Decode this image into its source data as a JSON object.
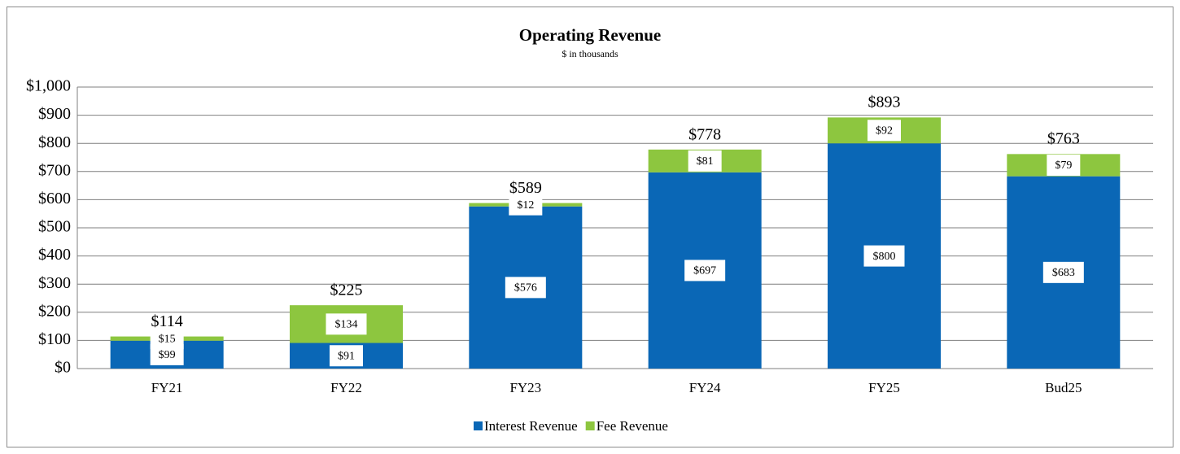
{
  "chart_data": {
    "type": "stacked_bar",
    "title": "Operating Revenue",
    "subtitle": "$ in thousands",
    "categories": [
      "FY21",
      "FY22",
      "FY23",
      "FY24",
      "FY25",
      "Bud25"
    ],
    "series": [
      {
        "name": "Interest Revenue",
        "color": "#0a67b6",
        "values": [
          99,
          91,
          576,
          697,
          800,
          683
        ],
        "value_labels": [
          "$99",
          "$91",
          "$576",
          "$697",
          "$800",
          "$683"
        ]
      },
      {
        "name": "Fee Revenue",
        "color": "#8dc63f",
        "values": [
          15,
          134,
          12,
          81,
          92,
          79
        ],
        "value_labels": [
          "$15",
          "$134",
          "$12",
          "$81",
          "$92",
          "$79"
        ]
      }
    ],
    "totals": [
      114,
      225,
      589,
      778,
      893,
      763
    ],
    "total_labels": [
      "$114",
      "$225",
      "$589",
      "$778",
      "$893",
      "$763"
    ],
    "ylim": [
      0,
      1000
    ],
    "yticks": [
      {
        "value": 0,
        "label": "$0"
      },
      {
        "value": 100,
        "label": "$100"
      },
      {
        "value": 200,
        "label": "$200"
      },
      {
        "value": 300,
        "label": "$300"
      },
      {
        "value": 400,
        "label": "$400"
      },
      {
        "value": 500,
        "label": "$500"
      },
      {
        "value": 600,
        "label": "$600"
      },
      {
        "value": 700,
        "label": "$700"
      },
      {
        "value": 800,
        "label": "$800"
      },
      {
        "value": 900,
        "label": "$900"
      },
      {
        "value": 1000,
        "label": "$1,000"
      }
    ],
    "grid": true,
    "legend": "bottom"
  }
}
